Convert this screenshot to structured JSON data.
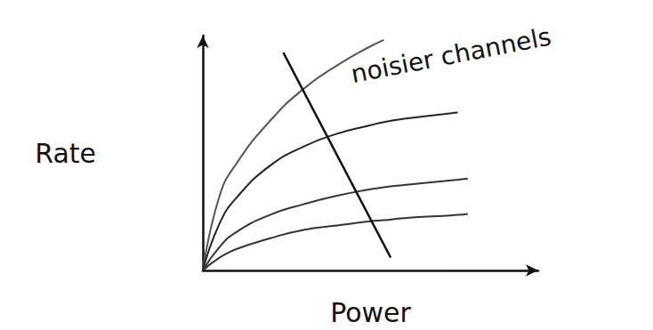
{
  "chart_data": {
    "type": "line",
    "x_label": "Power",
    "y_label": "Rate",
    "x": [
      0,
      0.5,
      1,
      2,
      3,
      4,
      5,
      5.4,
      6,
      7.6,
      7.9
    ],
    "series": [
      {
        "color": "#555555",
        "values": [
          0,
          3.5,
          5,
          7,
          8.5,
          9.6,
          10.5,
          10.8,
          null,
          null,
          null
        ]
      },
      {
        "color": "#222222",
        "values": [
          0,
          2.2,
          3.4,
          4.9,
          5.8,
          6.4,
          6.8,
          6.95,
          7.1,
          7.4,
          null
        ]
      },
      {
        "color": "#333333",
        "values": [
          0,
          1.1,
          1.8,
          2.6,
          3.1,
          3.5,
          3.8,
          3.9,
          4.0,
          4.25,
          4.3
        ]
      },
      {
        "color": "#333333",
        "values": [
          0,
          0.6,
          1.0,
          1.5,
          1.9,
          2.1,
          2.3,
          2.35,
          2.45,
          2.6,
          2.65
        ]
      }
    ],
    "xlim": [
      0,
      10
    ],
    "ylim": [
      0,
      11
    ],
    "annotations": [
      {
        "text": "noisier channels",
        "x": 4.5,
        "y": 8.6
      }
    ],
    "arrows": [
      {
        "from": [
          2.4,
          10.2
        ],
        "to": [
          5.6,
          0.6
        ]
      }
    ],
    "grid": false,
    "tick_labels": false
  }
}
